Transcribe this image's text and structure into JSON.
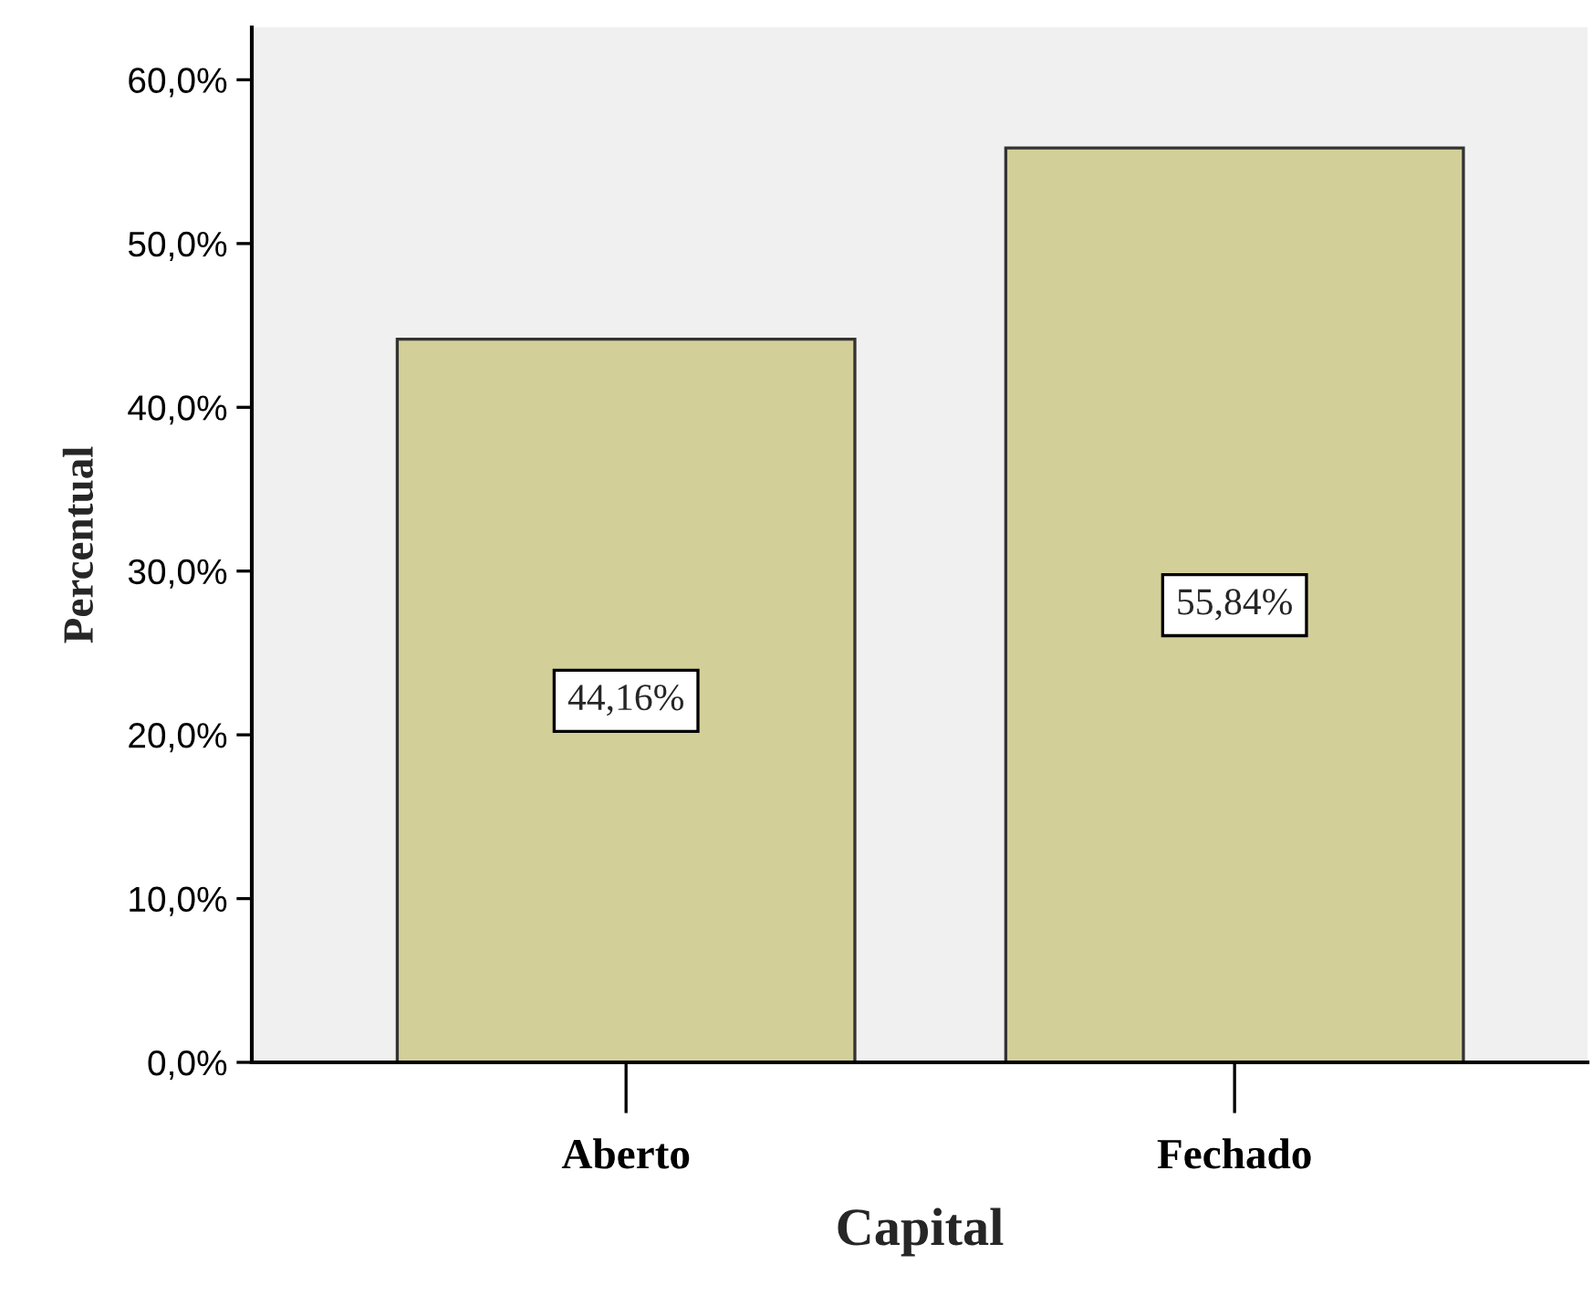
{
  "chart_data": {
    "type": "bar",
    "xlabel": "Capital",
    "ylabel": "Percentual",
    "categories": [
      "Aberto",
      "Fechado"
    ],
    "values": [
      44.16,
      55.84
    ],
    "value_labels": [
      "44,16%",
      "55,84%"
    ],
    "color": "#d3cf99",
    "ylim": [
      0,
      63.2
    ],
    "yticks": [
      {
        "value": 0,
        "label": "0,0%"
      },
      {
        "value": 10,
        "label": "10,0%"
      },
      {
        "value": 20,
        "label": "20,0%"
      },
      {
        "value": 30,
        "label": "30,0%"
      },
      {
        "value": 40,
        "label": "40,0%"
      },
      {
        "value": 50,
        "label": "50,0%"
      },
      {
        "value": 60,
        "label": "60,0%"
      }
    ],
    "grid": false,
    "legend": false
  }
}
